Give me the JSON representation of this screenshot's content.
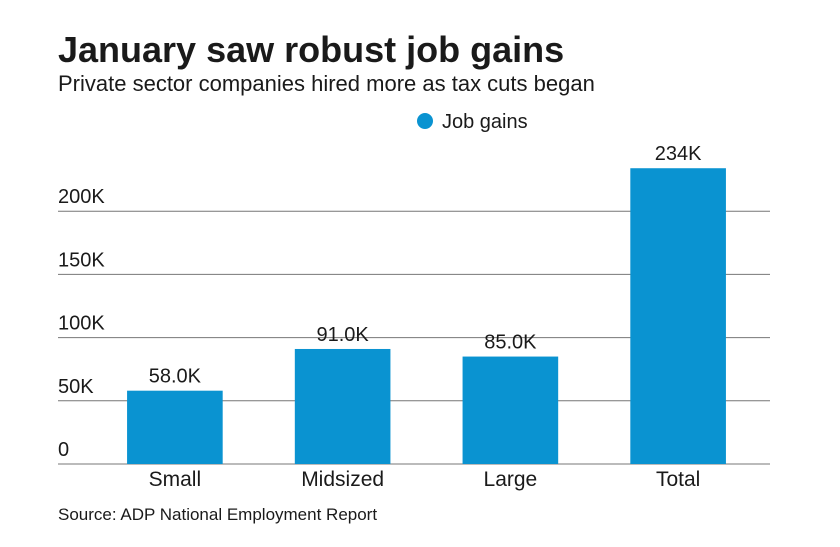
{
  "chart_data": {
    "type": "bar",
    "title": "January saw robust job gains",
    "subtitle": "Private sector companies hired more as tax cuts began",
    "source": "Source: ADP National Employment Report",
    "categories": [
      "Small",
      "Midsized",
      "Large",
      "Total"
    ],
    "series": [
      {
        "name": "Job gains",
        "color": "#0a93d1",
        "values": [
          58000,
          91000,
          85000,
          234000
        ],
        "value_labels": [
          "58.0K",
          "91.0K",
          "85.0K",
          "234K"
        ]
      }
    ],
    "ylim": [
      0,
      250000
    ],
    "yticks": [
      0,
      {
        "value": 50000,
        "label": "50K"
      },
      {
        "value": 100000,
        "label": "100K"
      },
      {
        "value": 150000,
        "label": "150K"
      },
      {
        "value": 200000,
        "label": "200K"
      }
    ],
    "grid": true
  }
}
